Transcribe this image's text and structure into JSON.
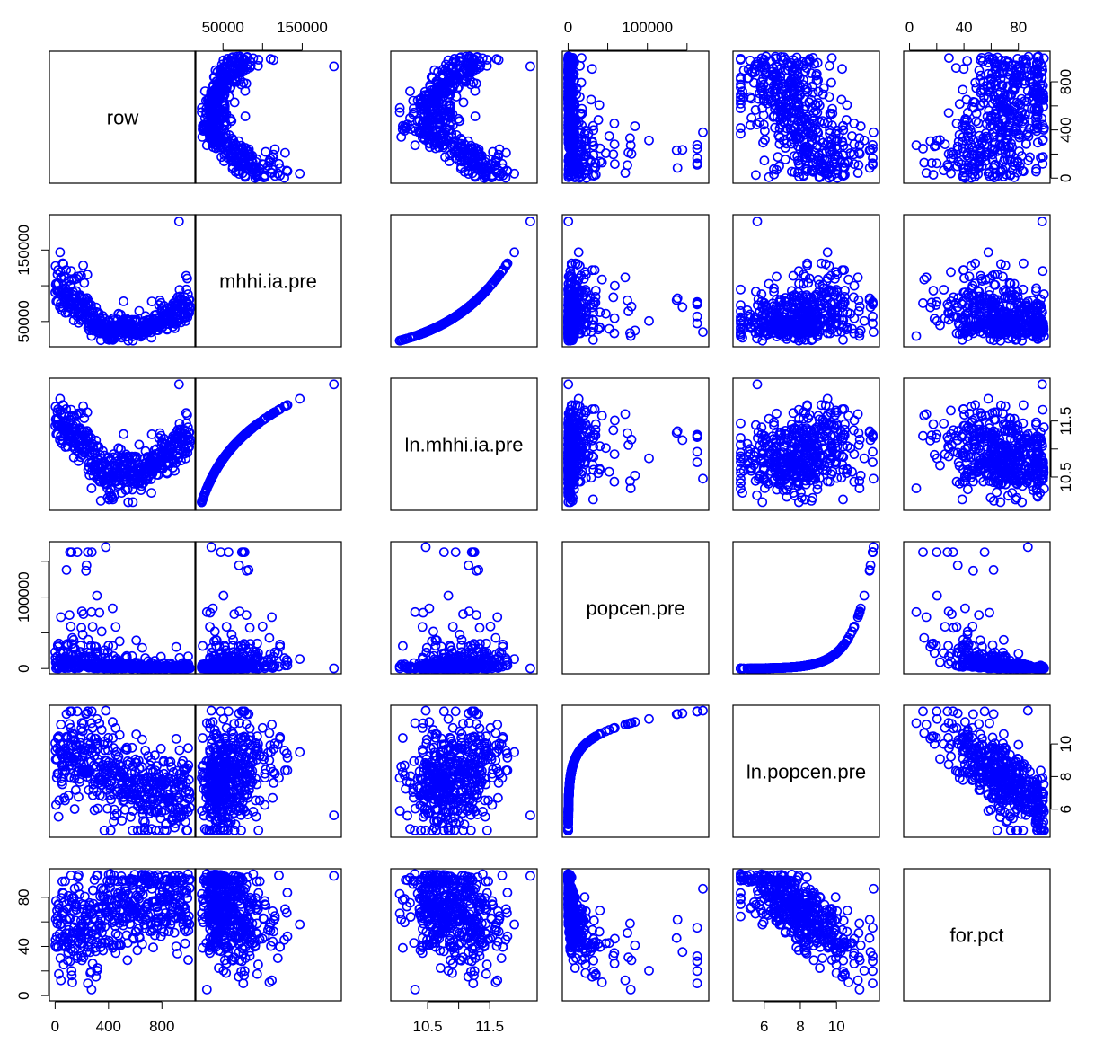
{
  "chart_data": {
    "type": "scatter",
    "chart_kind": "scatterplot-matrix",
    "title": "",
    "point_color": "#0000ff",
    "point_shape": "open-circle",
    "grid": false,
    "n_points_approx": 480,
    "variables": [
      {
        "name": "row",
        "range": [
          1,
          1010
        ],
        "ticks": [
          0,
          400,
          800
        ],
        "tick_labels": [
          "0",
          "400",
          "800"
        ],
        "axis_sides": [
          "bottom",
          "right"
        ],
        "right_ticks": [
          0,
          200,
          400,
          600,
          800
        ],
        "right_tick_labels": [
          "0",
          "",
          "400",
          "",
          "800"
        ]
      },
      {
        "name": "mhhi.ia.pre",
        "range": [
          22000,
          192000
        ],
        "ticks": [
          50000,
          100000,
          150000
        ],
        "tick_labels": [
          "50000",
          "",
          "150000"
        ],
        "axis_sides": [
          "top",
          "left"
        ]
      },
      {
        "name": "ln.mhhi.ia.pre",
        "range": [
          10.0,
          12.17
        ],
        "ticks": [
          10.5,
          11.0,
          11.5
        ],
        "tick_labels": [
          "10.5",
          "",
          "11.5"
        ],
        "axis_sides": [
          "bottom",
          "right"
        ]
      },
      {
        "name": "popcen.pre",
        "range": [
          100,
          170000
        ],
        "ticks": [
          0,
          50000,
          100000,
          150000
        ],
        "tick_labels": [
          "0",
          "",
          "100000",
          ""
        ],
        "axis_sides": [
          "top",
          "left"
        ]
      },
      {
        "name": "ln.popcen.pre",
        "range": [
          4.6,
          12.05
        ],
        "ticks": [
          6,
          8,
          10
        ],
        "tick_labels": [
          "6",
          "8",
          "10"
        ],
        "axis_sides": [
          "bottom",
          "right"
        ]
      },
      {
        "name": "for.pct",
        "range": [
          0,
          99
        ],
        "ticks": [
          0,
          20,
          40,
          60,
          80
        ],
        "tick_labels": [
          "0",
          "",
          "40",
          "",
          "80"
        ],
        "axis_sides": [
          "top",
          "left"
        ]
      }
    ],
    "series": [
      {
        "name": "",
        "relationship": "mhhi.ia.pre = exp(ln.mhhi.ia.pre); popcen.pre = exp(ln.popcen.pre)"
      }
    ]
  }
}
